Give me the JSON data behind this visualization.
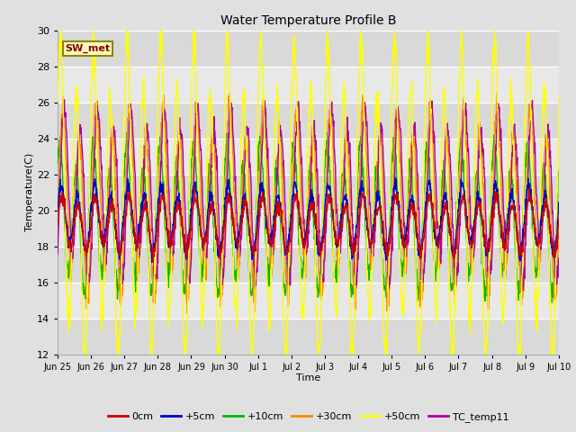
{
  "title": "Water Temperature Profile B",
  "xlabel": "Time",
  "ylabel": "Temperature(C)",
  "ylim": [
    12,
    30
  ],
  "yticks": [
    12,
    14,
    16,
    18,
    20,
    22,
    24,
    26,
    28,
    30
  ],
  "annotation_label": "SW_met",
  "annotation_color": "#8B0000",
  "annotation_bg": "#FFFFC0",
  "annotation_border": "#888800",
  "series_colors": {
    "0cm": "#CC0000",
    "+5cm": "#0000CC",
    "+10cm": "#00BB00",
    "+30cm": "#FF8800",
    "+50cm": "#FFFF00",
    "TC_temp11": "#AA00AA"
  },
  "series_linewidth": 1.0,
  "fig_bg": "#E0E0E0",
  "plot_bg": "#E8E8E8",
  "grid_color": "#FFFFFF",
  "tick_labels": [
    "Jun 25",
    "Jun 26",
    "Jun 27",
    "Jun 28",
    "Jun 29",
    "Jun 30",
    "Jul 1",
    "Jul 2",
    "Jul 3",
    "Jul 4",
    "Jul 5",
    "Jul 6",
    "Jul 7",
    "Jul 8",
    "Jul 9",
    "Jul 10"
  ],
  "n_points": 1500,
  "n_days": 15
}
